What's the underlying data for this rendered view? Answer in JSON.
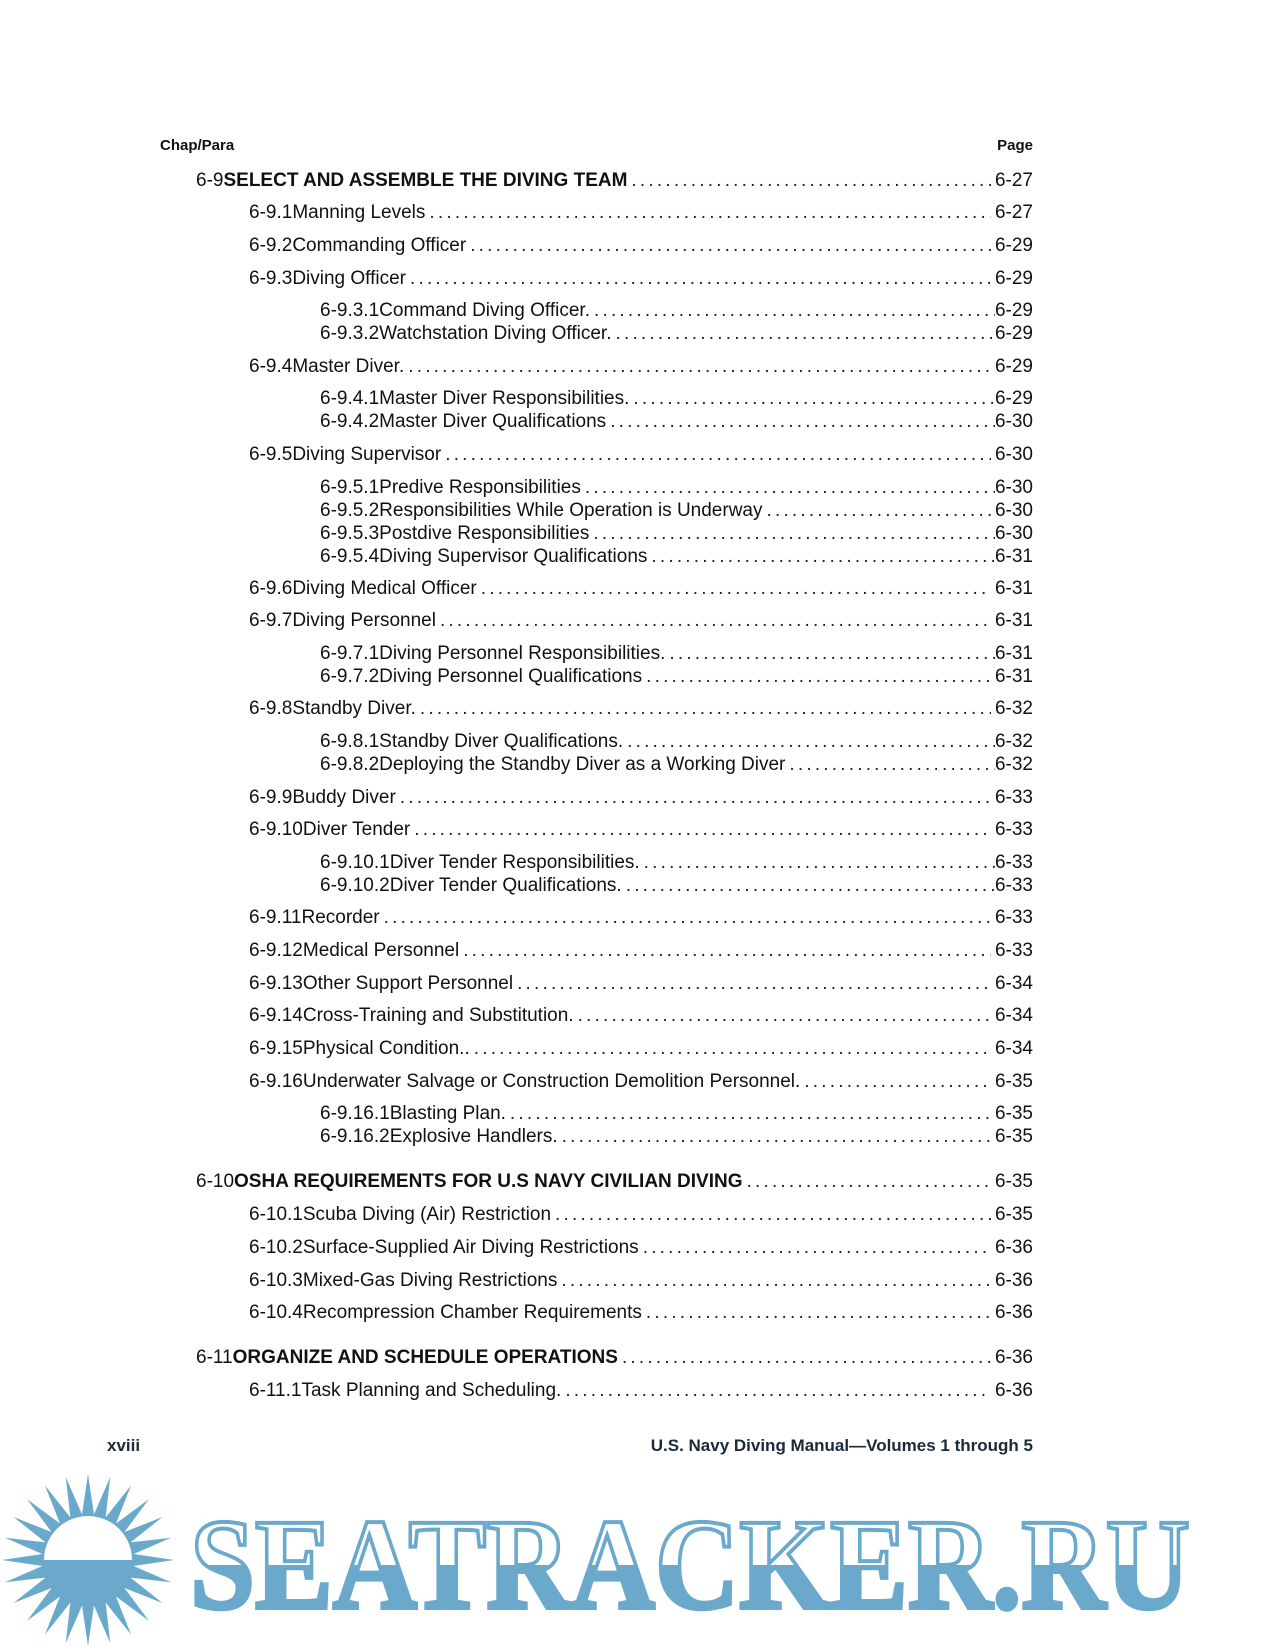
{
  "header": {
    "left": "Chap/Para",
    "right": "Page"
  },
  "entries": [
    {
      "level": 0,
      "num": "6-9",
      "title": "SELECT AND ASSEMBLE THE DIVING TEAM",
      "page": "6-27"
    },
    {
      "level": 1,
      "num": "6-9.1",
      "title": "Manning Levels",
      "page": "6-27"
    },
    {
      "level": 1,
      "num": "6-9.2",
      "title": "Commanding Officer",
      "page": "6-29"
    },
    {
      "level": 1,
      "num": "6-9.3",
      "title": "Diving Officer",
      "page": "6-29"
    },
    {
      "level": 2,
      "num": "6-9.3.1",
      "title": "Command Diving Officer.",
      "page": "6-29"
    },
    {
      "level": 2,
      "num": "6-9.3.2",
      "title": "Watchstation Diving Officer.",
      "page": "6-29"
    },
    {
      "level": 1,
      "num": "6-9.4",
      "title": "Master Diver.",
      "page": "6-29"
    },
    {
      "level": 2,
      "num": "6-9.4.1",
      "title": "Master Diver Responsibilities.",
      "page": "6-29"
    },
    {
      "level": 2,
      "num": "6-9.4.2",
      "title": "Master Diver Qualifications",
      "page": "6-30"
    },
    {
      "level": 1,
      "num": "6-9.5",
      "title": "Diving Supervisor",
      "page": "6-30"
    },
    {
      "level": 2,
      "num": "6-9.5.1",
      "title": "Predive Responsibilities",
      "page": "6-30"
    },
    {
      "level": 2,
      "num": "6-9.5.2",
      "title": "Responsibilities While Operation is Underway",
      "page": "6-30"
    },
    {
      "level": 2,
      "num": "6-9.5.3",
      "title": "Postdive Responsibilities",
      "page": "6-30"
    },
    {
      "level": 2,
      "num": "6-9.5.4",
      "title": "Diving Supervisor Qualifications",
      "page": "6-31"
    },
    {
      "level": 1,
      "num": "6-9.6",
      "title": "Diving Medical Officer",
      "page": "6-31"
    },
    {
      "level": 1,
      "num": "6-9.7",
      "title": "Diving Personnel",
      "page": "6-31"
    },
    {
      "level": 2,
      "num": "6-9.7.1",
      "title": "Diving Personnel Responsibilities.",
      "page": "6-31"
    },
    {
      "level": 2,
      "num": "6-9.7.2",
      "title": "Diving Personnel Qualifications",
      "page": "6-31"
    },
    {
      "level": 1,
      "num": "6-9.8",
      "title": "Standby Diver.",
      "page": "6-32"
    },
    {
      "level": 2,
      "num": "6-9.8.1",
      "title": "Standby Diver Qualifications.",
      "page": "6-32"
    },
    {
      "level": 2,
      "num": "6-9.8.2",
      "title": "Deploying the Standby Diver as a Working Diver",
      "page": "6-32"
    },
    {
      "level": 1,
      "num": "6-9.9",
      "title": "Buddy Diver",
      "page": "6-33"
    },
    {
      "level": 1,
      "num": "6-9.10",
      "title": "Diver Tender",
      "page": "6-33"
    },
    {
      "level": 2,
      "num": "6-9.10.1",
      "title": "Diver Tender Responsibilities.",
      "page": "6-33"
    },
    {
      "level": 2,
      "num": "6-9.10.2",
      "title": "Diver Tender Qualifications.",
      "page": "6-33"
    },
    {
      "level": 1,
      "num": "6-9.11",
      "title": "Recorder",
      "page": "6-33"
    },
    {
      "level": 1,
      "num": "6-9.12",
      "title": "Medical Personnel",
      "page": "6-33"
    },
    {
      "level": 1,
      "num": "6-9.13",
      "title": "Other Support Personnel",
      "page": "6-34"
    },
    {
      "level": 1,
      "num": "6-9.14",
      "title": "Cross-Training and Substitution.",
      "page": "6-34"
    },
    {
      "level": 1,
      "num": "6-9.15",
      "title": "Physical Condition..",
      "page": "6-34"
    },
    {
      "level": 1,
      "num": "6-9.16",
      "title": "Underwater Salvage or Construction Demolition Personnel.",
      "page": "6-35"
    },
    {
      "level": 2,
      "num": "6-9.16.1",
      "title": "Blasting Plan.",
      "page": "6-35"
    },
    {
      "level": 2,
      "num": "6-9.16.2",
      "title": "Explosive Handlers.",
      "page": "6-35"
    },
    {
      "level": 0,
      "num": "6-10",
      "title": "OSHA REQUIREMENTS FOR U.S NAVY CIVILIAN DIVING",
      "page": "6-35"
    },
    {
      "level": 1,
      "num": "6-10.1",
      "title": "Scuba Diving (Air) Restriction",
      "page": "6-35"
    },
    {
      "level": 1,
      "num": "6-10.2",
      "title": "Surface-Supplied Air Diving Restrictions",
      "page": "6-36"
    },
    {
      "level": 1,
      "num": "6-10.3",
      "title": "Mixed-Gas Diving Restrictions",
      "page": "6-36"
    },
    {
      "level": 1,
      "num": "6-10.4",
      "title": "Recompression Chamber Requirements",
      "page": "6-36"
    },
    {
      "level": 0,
      "num": "6-11",
      "title": "ORGANIZE AND SCHEDULE OPERATIONS",
      "page": "6-36"
    },
    {
      "level": 1,
      "num": "6-11.1",
      "title": "Task Planning and Scheduling.",
      "page": "6-36"
    }
  ],
  "footer": {
    "page_number": "xviii",
    "title": "U.S. Navy Diving Manual—Volumes 1 through 5"
  },
  "watermark": {
    "text": "SEATRACKER.RU",
    "color": "#6aa9cb"
  }
}
